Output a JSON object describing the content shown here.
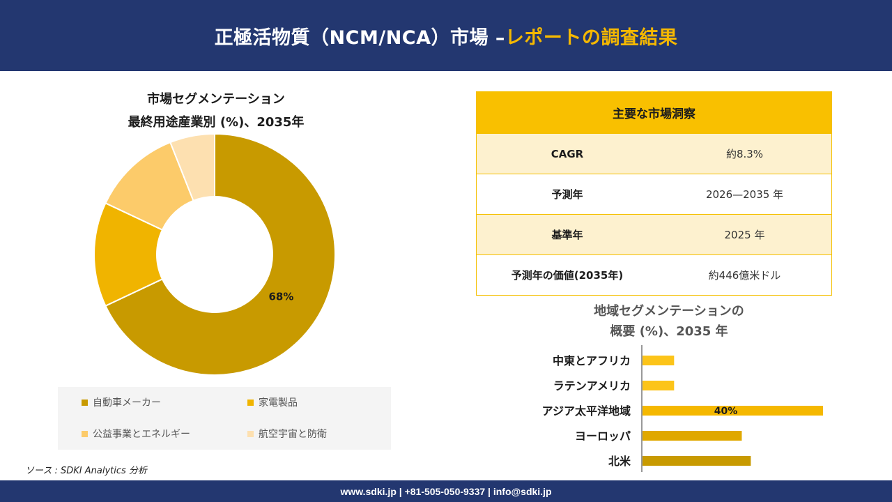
{
  "header": {
    "title_main": "正極活物質（NCM/NCA）市場 –",
    "title_accent": "レポートの調査結果"
  },
  "donut": {
    "title_line1": "市場セグメンテーション",
    "title_line2": "最終用途産業別 (%)、2035年"
  },
  "insights": {
    "heading": "主要な市場洞察",
    "rows": [
      {
        "label": "CAGR",
        "value": "約8.3%"
      },
      {
        "label": "予測年",
        "value": "2026—2035 年"
      },
      {
        "label": "基準年",
        "value": "2025 年"
      },
      {
        "label": "予測年の価値(2035年)",
        "value": "約446億米ドル"
      }
    ]
  },
  "bars": {
    "title_line1": "地域セグメンテーションの",
    "title_line2": "概要 (%)、2035 年"
  },
  "source": "ソース : SDKI Analytics 分析",
  "footer": "www.sdki.jp | +81-505-050-9337 | info@sdki.jp",
  "chart_data": [
    {
      "type": "pie",
      "title": "市場セグメンテーション 最終用途産業別 (%)、2035年",
      "categories": [
        "自動車メーカー",
        "家電製品",
        "公益事業とエネルギー",
        "航空宇宙と防衛"
      ],
      "values": [
        68,
        14,
        12,
        6
      ],
      "data_labels": [
        "68%",
        "",
        "",
        ""
      ],
      "colors": [
        "#c89a00",
        "#f0b400",
        "#fccb6a",
        "#fde0b0"
      ],
      "hole": true,
      "legend": "bottom"
    },
    {
      "type": "bar",
      "orientation": "horizontal",
      "title": "地域セグメンテーションの 概要 (%)、2035 年",
      "categories": [
        "中東とアフリカ",
        "ラテンアメリカ",
        "アジア太平洋地域",
        "ヨーロッパ",
        "北米"
      ],
      "values": [
        7,
        7,
        40,
        22,
        24
      ],
      "data_labels": [
        "",
        "",
        "40%",
        "",
        ""
      ],
      "colors": [
        "#fcc419",
        "#fcc419",
        "#f5b800",
        "#e0a800",
        "#c89a00"
      ]
    }
  ]
}
